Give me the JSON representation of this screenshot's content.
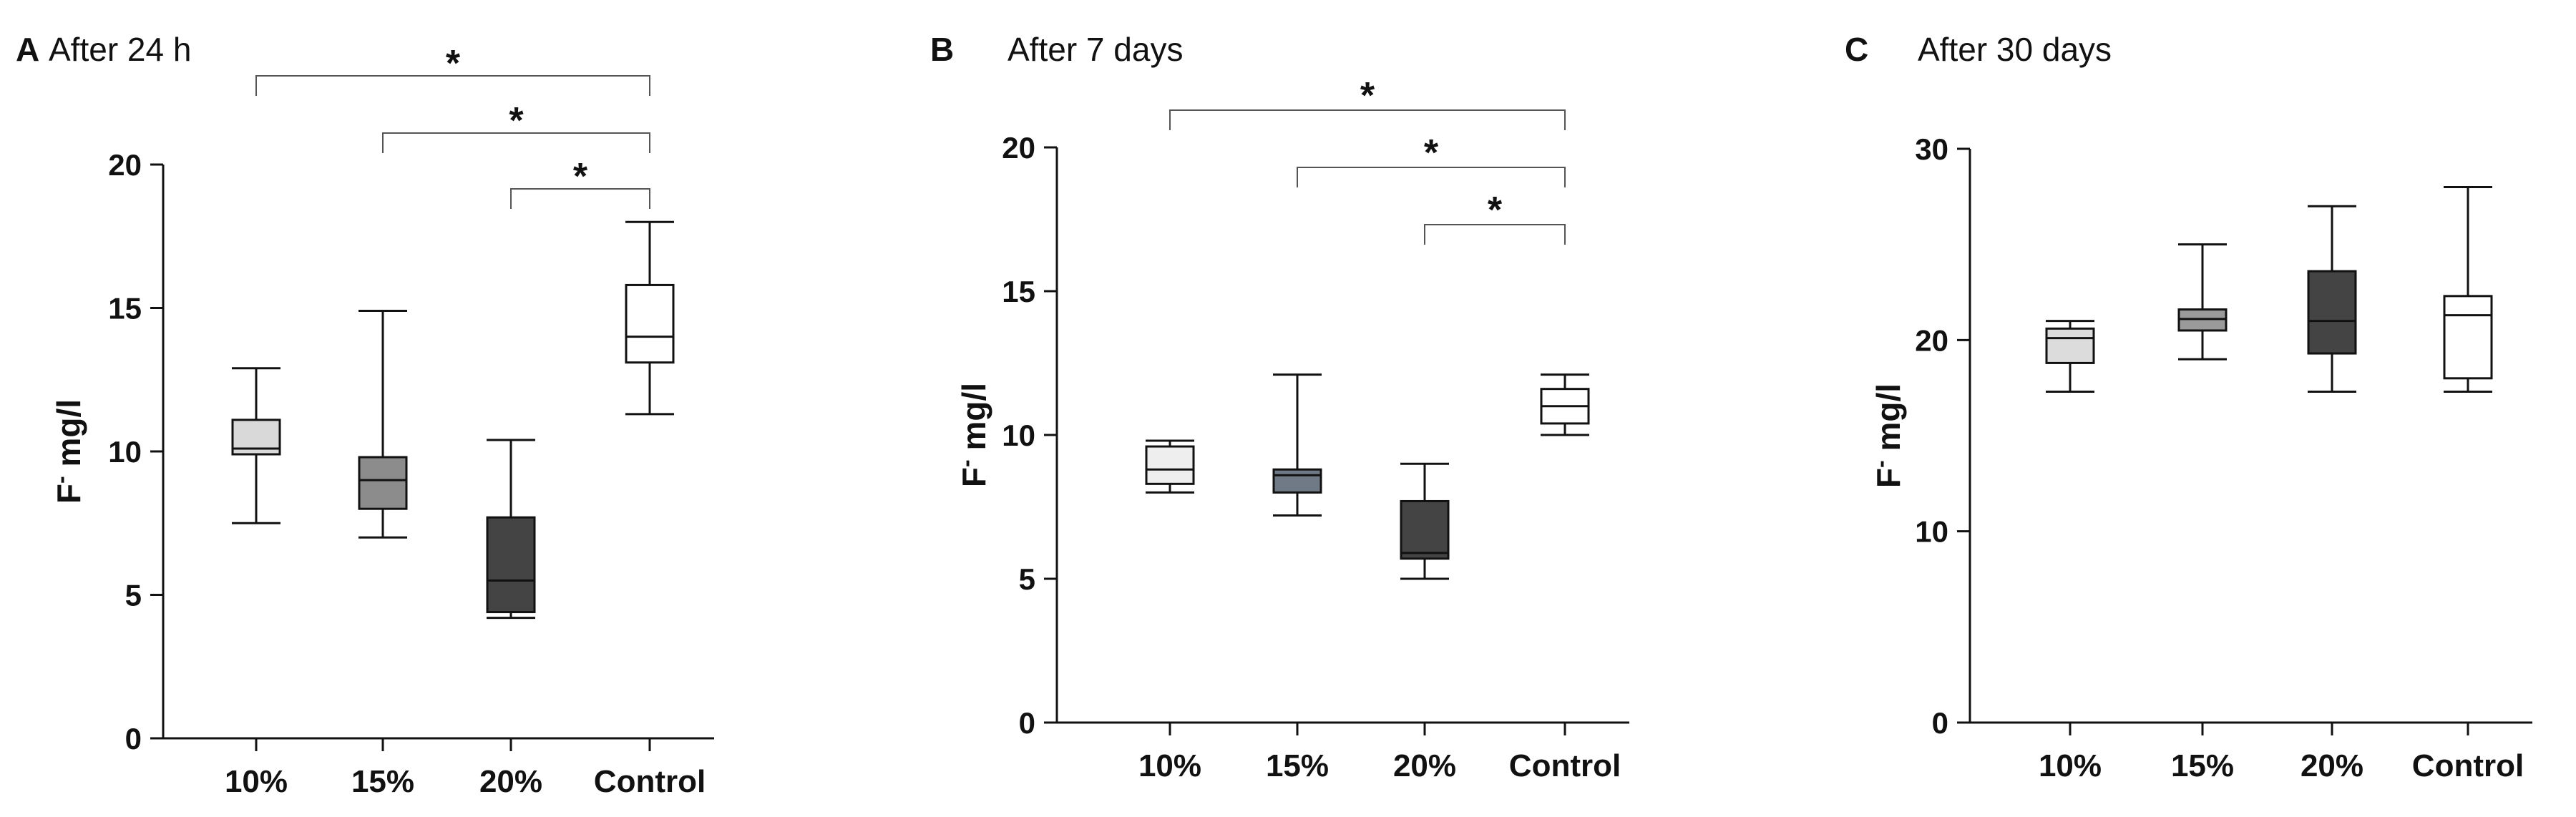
{
  "figure": {
    "y_label_main": "F",
    "y_label_sup": "-",
    "y_label_unit": " mg/l"
  },
  "chart_data": [
    {
      "type": "boxplot",
      "panel": "A",
      "title": "After 24 h",
      "ylabel": "F- mg/l",
      "ylim": [
        0,
        20
      ],
      "yticks": [
        0,
        5,
        10,
        15,
        20
      ],
      "categories": [
        "10%",
        "15%",
        "20%",
        "Control"
      ],
      "fills": [
        "#d9d9d9",
        "#8c8c8c",
        "#444444",
        "#ffffff"
      ],
      "medianColors": [
        "#111111",
        "#111111",
        "#111111",
        "#111111"
      ],
      "boxes": [
        {
          "min": 7.5,
          "q1": 9.9,
          "median": 10.1,
          "q3": 11.1,
          "max": 12.9
        },
        {
          "min": 7.0,
          "q1": 8.0,
          "median": 9.0,
          "q3": 9.8,
          "max": 14.9
        },
        {
          "min": 4.2,
          "q1": 4.4,
          "median": 5.5,
          "q3": 7.7,
          "max": 10.4
        },
        {
          "min": 11.3,
          "q1": 13.1,
          "median": 14.0,
          "q3": 15.8,
          "max": 18.0
        }
      ],
      "significance": [
        {
          "from": 0,
          "to": 3,
          "label": "*"
        },
        {
          "from": 1,
          "to": 3,
          "label": "*"
        },
        {
          "from": 2,
          "to": 3,
          "label": "*"
        }
      ]
    },
    {
      "type": "boxplot",
      "panel": "B",
      "title": "After 7 days",
      "ylabel": "F- mg/l",
      "ylim": [
        0,
        20
      ],
      "yticks": [
        0,
        5,
        10,
        15,
        20
      ],
      "categories": [
        "10%",
        "15%",
        "20%",
        "Control"
      ],
      "fills": [
        "#eeeeee",
        "#707a86",
        "#444444",
        "#ffffff"
      ],
      "medianColors": [
        "#111111",
        "#111111",
        "#111111",
        "#111111"
      ],
      "boxes": [
        {
          "min": 8.0,
          "q1": 8.3,
          "median": 8.8,
          "q3": 9.6,
          "max": 9.8
        },
        {
          "min": 7.2,
          "q1": 8.0,
          "median": 8.6,
          "q3": 8.8,
          "max": 12.1
        },
        {
          "min": 5.0,
          "q1": 5.7,
          "median": 5.9,
          "q3": 7.7,
          "max": 9.0
        },
        {
          "min": 10.0,
          "q1": 10.4,
          "median": 11.0,
          "q3": 11.6,
          "max": 12.1
        }
      ],
      "significance": [
        {
          "from": 0,
          "to": 3,
          "label": "*"
        },
        {
          "from": 1,
          "to": 3,
          "label": "*"
        },
        {
          "from": 2,
          "to": 3,
          "label": "*"
        }
      ]
    },
    {
      "type": "boxplot",
      "panel": "C",
      "title": "After 30 days",
      "ylabel": "F- mg/l",
      "ylim": [
        0,
        30
      ],
      "yticks": [
        0,
        10,
        20,
        30
      ],
      "categories": [
        "10%",
        "15%",
        "20%",
        "Control"
      ],
      "fills": [
        "#dcdcdc",
        "#9a9a9a",
        "#444444",
        "#ffffff"
      ],
      "medianColors": [
        "#111111",
        "#111111",
        "#111111",
        "#111111"
      ],
      "boxes": [
        {
          "min": 17.3,
          "q1": 18.8,
          "median": 20.1,
          "q3": 20.6,
          "max": 21.0
        },
        {
          "min": 19.0,
          "q1": 20.5,
          "median": 21.1,
          "q3": 21.6,
          "max": 25.0
        },
        {
          "min": 17.3,
          "q1": 19.3,
          "median": 21.0,
          "q3": 23.6,
          "max": 27.0
        },
        {
          "min": 17.3,
          "q1": 18.0,
          "median": 21.3,
          "q3": 22.3,
          "max": 28.0
        }
      ],
      "significance": []
    }
  ]
}
